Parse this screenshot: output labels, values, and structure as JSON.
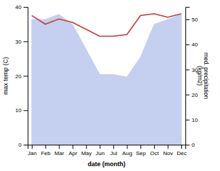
{
  "chart_data": {
    "type": "line",
    "categories": [
      "Jan",
      "Feb",
      "Mar",
      "Apr",
      "May",
      "Jun",
      "Jul",
      "Aug",
      "Sep",
      "Oct",
      "Nov",
      "Dec"
    ],
    "series": [
      {
        "type": "area",
        "axis": "y2",
        "color": "#c5cff0",
        "values": [
          50,
          50,
          52,
          48,
          38,
          28,
          28,
          27,
          35,
          48,
          50,
          52
        ]
      },
      {
        "type": "line",
        "color": "#c0504d",
        "values": [
          37.5,
          35.0,
          36.5,
          35.5,
          33.5,
          31.5,
          31.5,
          32.0,
          37.5,
          38.0,
          37.0,
          38.0
        ]
      }
    ],
    "xlabel": "date (month)",
    "ylabel": "max temp (C)",
    "y2label": "med. precipitation\n(kg/m2)",
    "ylim": [
      0,
      40
    ],
    "yticks": [
      0,
      10,
      20,
      30,
      40
    ],
    "y2lim": [
      0,
      55
    ],
    "y2ticks": [
      0,
      10,
      20,
      30,
      40,
      50
    ],
    "grid": false
  }
}
